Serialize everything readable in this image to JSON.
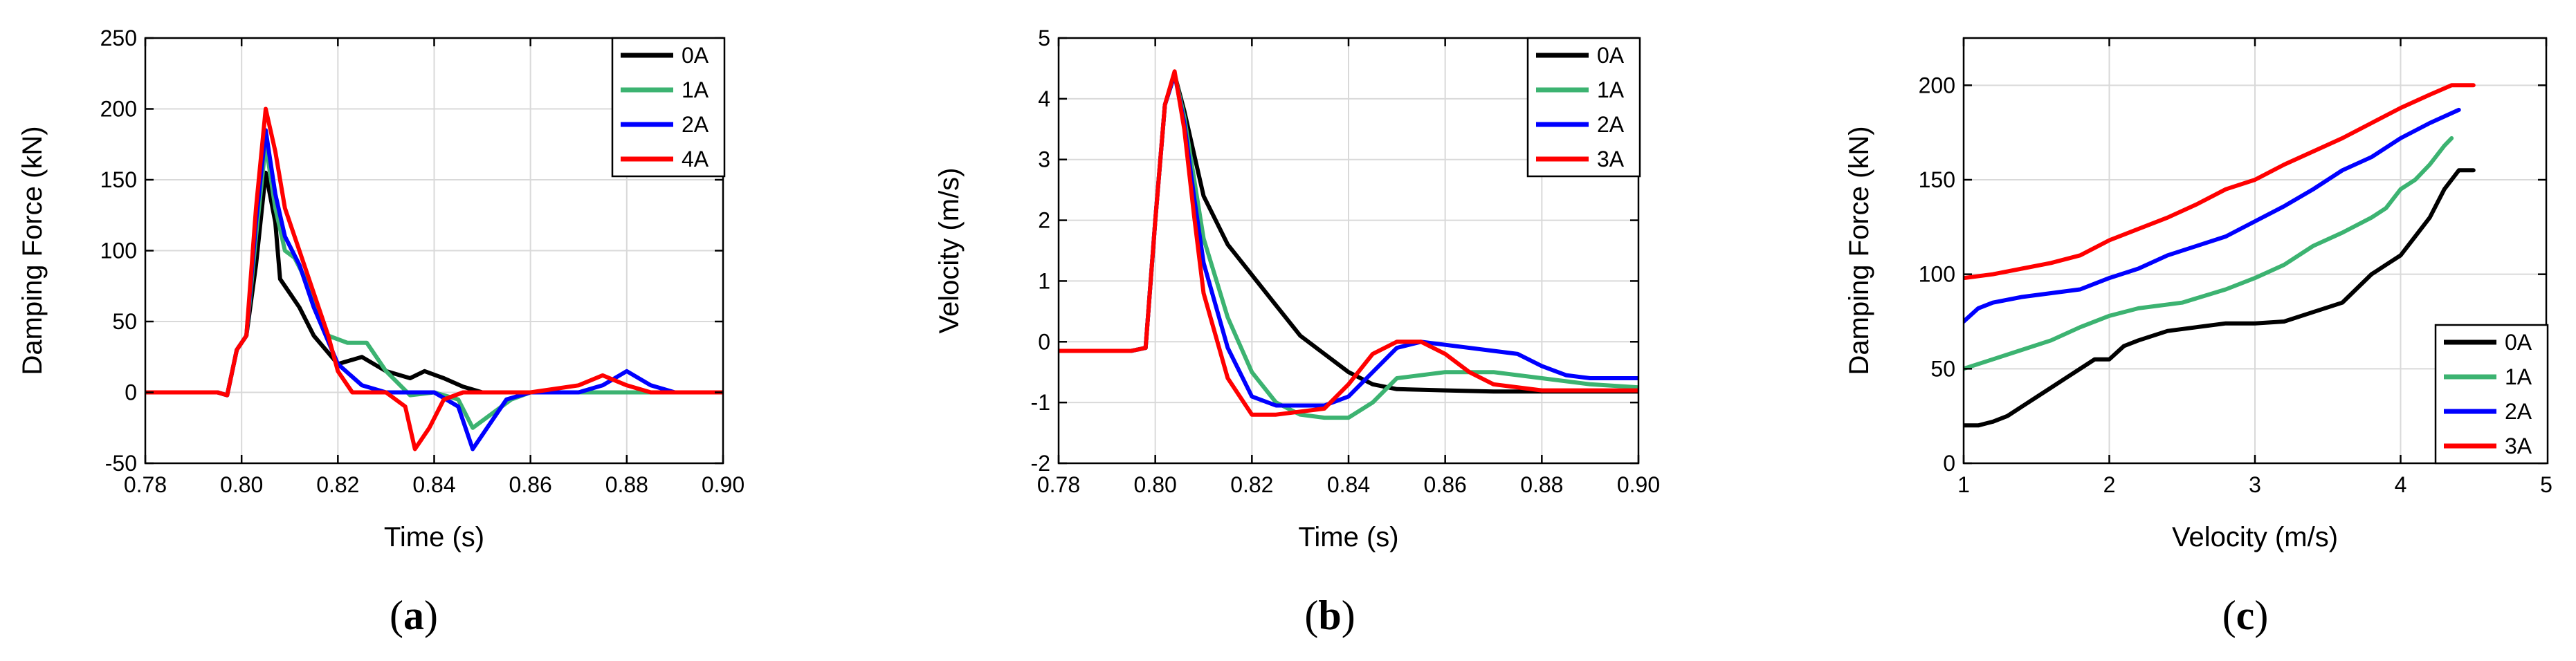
{
  "figure": {
    "captions": [
      "(a)",
      "(b)",
      "(c)"
    ]
  },
  "chart_data": [
    {
      "type": "line",
      "caption": "(a)",
      "xlabel": "Time (s)",
      "ylabel": "Damping Force (kN)",
      "xlim": [
        0.78,
        0.9
      ],
      "ylim": [
        -50,
        250
      ],
      "xticks": [
        0.78,
        0.8,
        0.82,
        0.84,
        0.86,
        0.88,
        0.9
      ],
      "yticks": [
        -50,
        0,
        50,
        100,
        150,
        200,
        250
      ],
      "xtick_labels": [
        "0.78",
        "0.80",
        "0.82",
        "0.84",
        "0.86",
        "0.88",
        "0.90"
      ],
      "ytick_labels": [
        "-50",
        "0",
        "50",
        "100",
        "150",
        "200",
        "250"
      ],
      "grid": true,
      "legend_position": "top-right",
      "series": [
        {
          "name": "0A",
          "color": "#000000",
          "x": [
            0.78,
            0.79,
            0.795,
            0.797,
            0.799,
            0.801,
            0.803,
            0.805,
            0.807,
            0.808,
            0.81,
            0.812,
            0.815,
            0.82,
            0.825,
            0.83,
            0.835,
            0.838,
            0.842,
            0.846,
            0.85,
            0.86,
            0.87,
            0.88,
            0.89,
            0.9
          ],
          "y": [
            0,
            0,
            0,
            -2,
            30,
            40,
            90,
            155,
            120,
            80,
            70,
            60,
            40,
            20,
            25,
            15,
            10,
            15,
            10,
            4,
            0,
            0,
            0,
            0,
            0,
            0
          ]
        },
        {
          "name": "1A",
          "color": "#3cb371",
          "x": [
            0.78,
            0.79,
            0.795,
            0.797,
            0.799,
            0.801,
            0.803,
            0.805,
            0.807,
            0.809,
            0.811,
            0.814,
            0.818,
            0.822,
            0.826,
            0.83,
            0.835,
            0.84,
            0.845,
            0.848,
            0.852,
            0.856,
            0.86,
            0.87,
            0.88,
            0.89,
            0.9
          ],
          "y": [
            0,
            0,
            0,
            -2,
            30,
            40,
            110,
            175,
            130,
            100,
            95,
            75,
            40,
            35,
            35,
            15,
            -2,
            0,
            -5,
            -25,
            -15,
            -5,
            0,
            0,
            0,
            0,
            0
          ]
        },
        {
          "name": "2A",
          "color": "#0000ff",
          "x": [
            0.78,
            0.79,
            0.795,
            0.797,
            0.799,
            0.801,
            0.803,
            0.805,
            0.807,
            0.809,
            0.812,
            0.815,
            0.82,
            0.825,
            0.83,
            0.835,
            0.84,
            0.845,
            0.848,
            0.851,
            0.855,
            0.86,
            0.87,
            0.875,
            0.88,
            0.885,
            0.89,
            0.9
          ],
          "y": [
            0,
            0,
            0,
            -2,
            30,
            40,
            120,
            185,
            140,
            110,
            90,
            60,
            20,
            5,
            0,
            0,
            0,
            -10,
            -40,
            -25,
            -5,
            0,
            0,
            5,
            15,
            5,
            0,
            0
          ]
        },
        {
          "name": "4A",
          "color": "#ff0000",
          "x": [
            0.78,
            0.79,
            0.795,
            0.797,
            0.799,
            0.801,
            0.803,
            0.805,
            0.807,
            0.809,
            0.812,
            0.815,
            0.818,
            0.82,
            0.823,
            0.826,
            0.83,
            0.834,
            0.836,
            0.839,
            0.842,
            0.846,
            0.85,
            0.855,
            0.86,
            0.87,
            0.875,
            0.88,
            0.885,
            0.89,
            0.9
          ],
          "y": [
            0,
            0,
            0,
            -2,
            30,
            40,
            130,
            200,
            170,
            130,
            100,
            70,
            40,
            15,
            0,
            0,
            0,
            -10,
            -40,
            -25,
            -5,
            0,
            0,
            0,
            0,
            5,
            12,
            5,
            0,
            0,
            0
          ]
        }
      ]
    },
    {
      "type": "line",
      "caption": "(b)",
      "xlabel": "Time (s)",
      "ylabel": "Velocity (m/s)",
      "xlim": [
        0.78,
        0.9
      ],
      "ylim": [
        -2,
        5
      ],
      "xticks": [
        0.78,
        0.8,
        0.82,
        0.84,
        0.86,
        0.88,
        0.9
      ],
      "yticks": [
        -2,
        -1,
        0,
        1,
        2,
        3,
        4,
        5
      ],
      "xtick_labels": [
        "0.78",
        "0.80",
        "0.82",
        "0.84",
        "0.86",
        "0.88",
        "0.90"
      ],
      "ytick_labels": [
        "-2",
        "-1",
        "0",
        "1",
        "2",
        "3",
        "4",
        "5"
      ],
      "grid": true,
      "legend_position": "top-right",
      "series": [
        {
          "name": "0A",
          "color": "#000000",
          "x": [
            0.78,
            0.795,
            0.798,
            0.8,
            0.802,
            0.804,
            0.806,
            0.808,
            0.81,
            0.815,
            0.82,
            0.825,
            0.83,
            0.835,
            0.84,
            0.845,
            0.85,
            0.86,
            0.87,
            0.88,
            0.89,
            0.9
          ],
          "y": [
            -0.15,
            -0.15,
            -0.1,
            2.0,
            3.9,
            4.4,
            3.8,
            3.1,
            2.4,
            1.6,
            1.1,
            0.6,
            0.1,
            -0.2,
            -0.5,
            -0.7,
            -0.78,
            -0.8,
            -0.82,
            -0.82,
            -0.82,
            -0.82
          ]
        },
        {
          "name": "1A",
          "color": "#3cb371",
          "x": [
            0.78,
            0.795,
            0.798,
            0.8,
            0.802,
            0.804,
            0.806,
            0.808,
            0.81,
            0.815,
            0.82,
            0.825,
            0.83,
            0.835,
            0.84,
            0.845,
            0.85,
            0.86,
            0.87,
            0.88,
            0.89,
            0.9
          ],
          "y": [
            -0.15,
            -0.15,
            -0.1,
            2.0,
            3.9,
            4.4,
            3.7,
            2.7,
            1.7,
            0.4,
            -0.5,
            -1.0,
            -1.2,
            -1.25,
            -1.25,
            -1.0,
            -0.6,
            -0.5,
            -0.5,
            -0.6,
            -0.7,
            -0.75
          ]
        },
        {
          "name": "2A",
          "color": "#0000ff",
          "x": [
            0.78,
            0.795,
            0.798,
            0.8,
            0.802,
            0.804,
            0.806,
            0.808,
            0.81,
            0.815,
            0.82,
            0.825,
            0.83,
            0.835,
            0.84,
            0.845,
            0.85,
            0.855,
            0.86,
            0.87,
            0.875,
            0.88,
            0.885,
            0.89,
            0.9
          ],
          "y": [
            -0.15,
            -0.15,
            -0.1,
            2.0,
            3.9,
            4.4,
            3.6,
            2.4,
            1.3,
            -0.1,
            -0.9,
            -1.05,
            -1.05,
            -1.05,
            -0.9,
            -0.5,
            -0.1,
            0.0,
            -0.05,
            -0.15,
            -0.2,
            -0.4,
            -0.55,
            -0.6,
            -0.6
          ]
        },
        {
          "name": "3A",
          "color": "#ff0000",
          "x": [
            0.78,
            0.795,
            0.798,
            0.8,
            0.802,
            0.804,
            0.806,
            0.808,
            0.81,
            0.815,
            0.82,
            0.825,
            0.83,
            0.835,
            0.84,
            0.845,
            0.85,
            0.855,
            0.86,
            0.865,
            0.87,
            0.88,
            0.89,
            0.9
          ],
          "y": [
            -0.15,
            -0.15,
            -0.1,
            2.0,
            3.9,
            4.45,
            3.5,
            2.1,
            0.8,
            -0.6,
            -1.2,
            -1.2,
            -1.15,
            -1.1,
            -0.7,
            -0.2,
            0.0,
            0.0,
            -0.2,
            -0.5,
            -0.7,
            -0.8,
            -0.8,
            -0.8
          ]
        }
      ]
    },
    {
      "type": "line",
      "caption": "(c)",
      "xlabel": "Velocity (m/s)",
      "ylabel": "Damping Force (kN)",
      "xlim": [
        1,
        5
      ],
      "ylim": [
        0,
        225
      ],
      "xticks": [
        1,
        2,
        3,
        4,
        5
      ],
      "yticks": [
        0,
        50,
        100,
        150,
        200
      ],
      "xtick_labels": [
        "1",
        "2",
        "3",
        "4",
        "5"
      ],
      "ytick_labels": [
        "0",
        "50",
        "100",
        "150",
        "200"
      ],
      "grid": true,
      "legend_position": "bottom-right",
      "series": [
        {
          "name": "0A",
          "color": "#000000",
          "x": [
            1.0,
            1.1,
            1.2,
            1.3,
            1.4,
            1.5,
            1.6,
            1.7,
            1.8,
            1.9,
            2.0,
            2.1,
            2.2,
            2.4,
            2.6,
            2.8,
            3.0,
            3.2,
            3.4,
            3.6,
            3.8,
            3.9,
            4.0,
            4.1,
            4.2,
            4.3,
            4.4,
            4.5
          ],
          "y": [
            20,
            20,
            22,
            25,
            30,
            35,
            40,
            45,
            50,
            55,
            55,
            62,
            65,
            70,
            72,
            74,
            74,
            75,
            80,
            85,
            100,
            105,
            110,
            120,
            130,
            145,
            155,
            155
          ]
        },
        {
          "name": "1A",
          "color": "#3cb371",
          "x": [
            1.0,
            1.2,
            1.4,
            1.6,
            1.8,
            2.0,
            2.2,
            2.5,
            2.8,
            3.0,
            3.2,
            3.4,
            3.6,
            3.8,
            3.9,
            4.0,
            4.1,
            4.2,
            4.3,
            4.35
          ],
          "y": [
            50,
            55,
            60,
            65,
            72,
            78,
            82,
            85,
            92,
            98,
            105,
            115,
            122,
            130,
            135,
            145,
            150,
            158,
            168,
            172
          ]
        },
        {
          "name": "2A",
          "color": "#0000ff",
          "x": [
            1.0,
            1.1,
            1.2,
            1.4,
            1.6,
            1.8,
            2.0,
            2.2,
            2.4,
            2.6,
            2.8,
            3.0,
            3.2,
            3.4,
            3.6,
            3.8,
            4.0,
            4.2,
            4.4
          ],
          "y": [
            75,
            82,
            85,
            88,
            90,
            92,
            98,
            103,
            110,
            115,
            120,
            128,
            136,
            145,
            155,
            162,
            172,
            180,
            187
          ]
        },
        {
          "name": "3A",
          "color": "#ff0000",
          "x": [
            1.0,
            1.2,
            1.4,
            1.6,
            1.8,
            2.0,
            2.2,
            2.4,
            2.6,
            2.8,
            3.0,
            3.2,
            3.4,
            3.6,
            3.8,
            4.0,
            4.2,
            4.35,
            4.5
          ],
          "y": [
            98,
            100,
            103,
            106,
            110,
            118,
            124,
            130,
            137,
            145,
            150,
            158,
            165,
            172,
            180,
            188,
            195,
            200,
            200
          ]
        }
      ]
    }
  ]
}
